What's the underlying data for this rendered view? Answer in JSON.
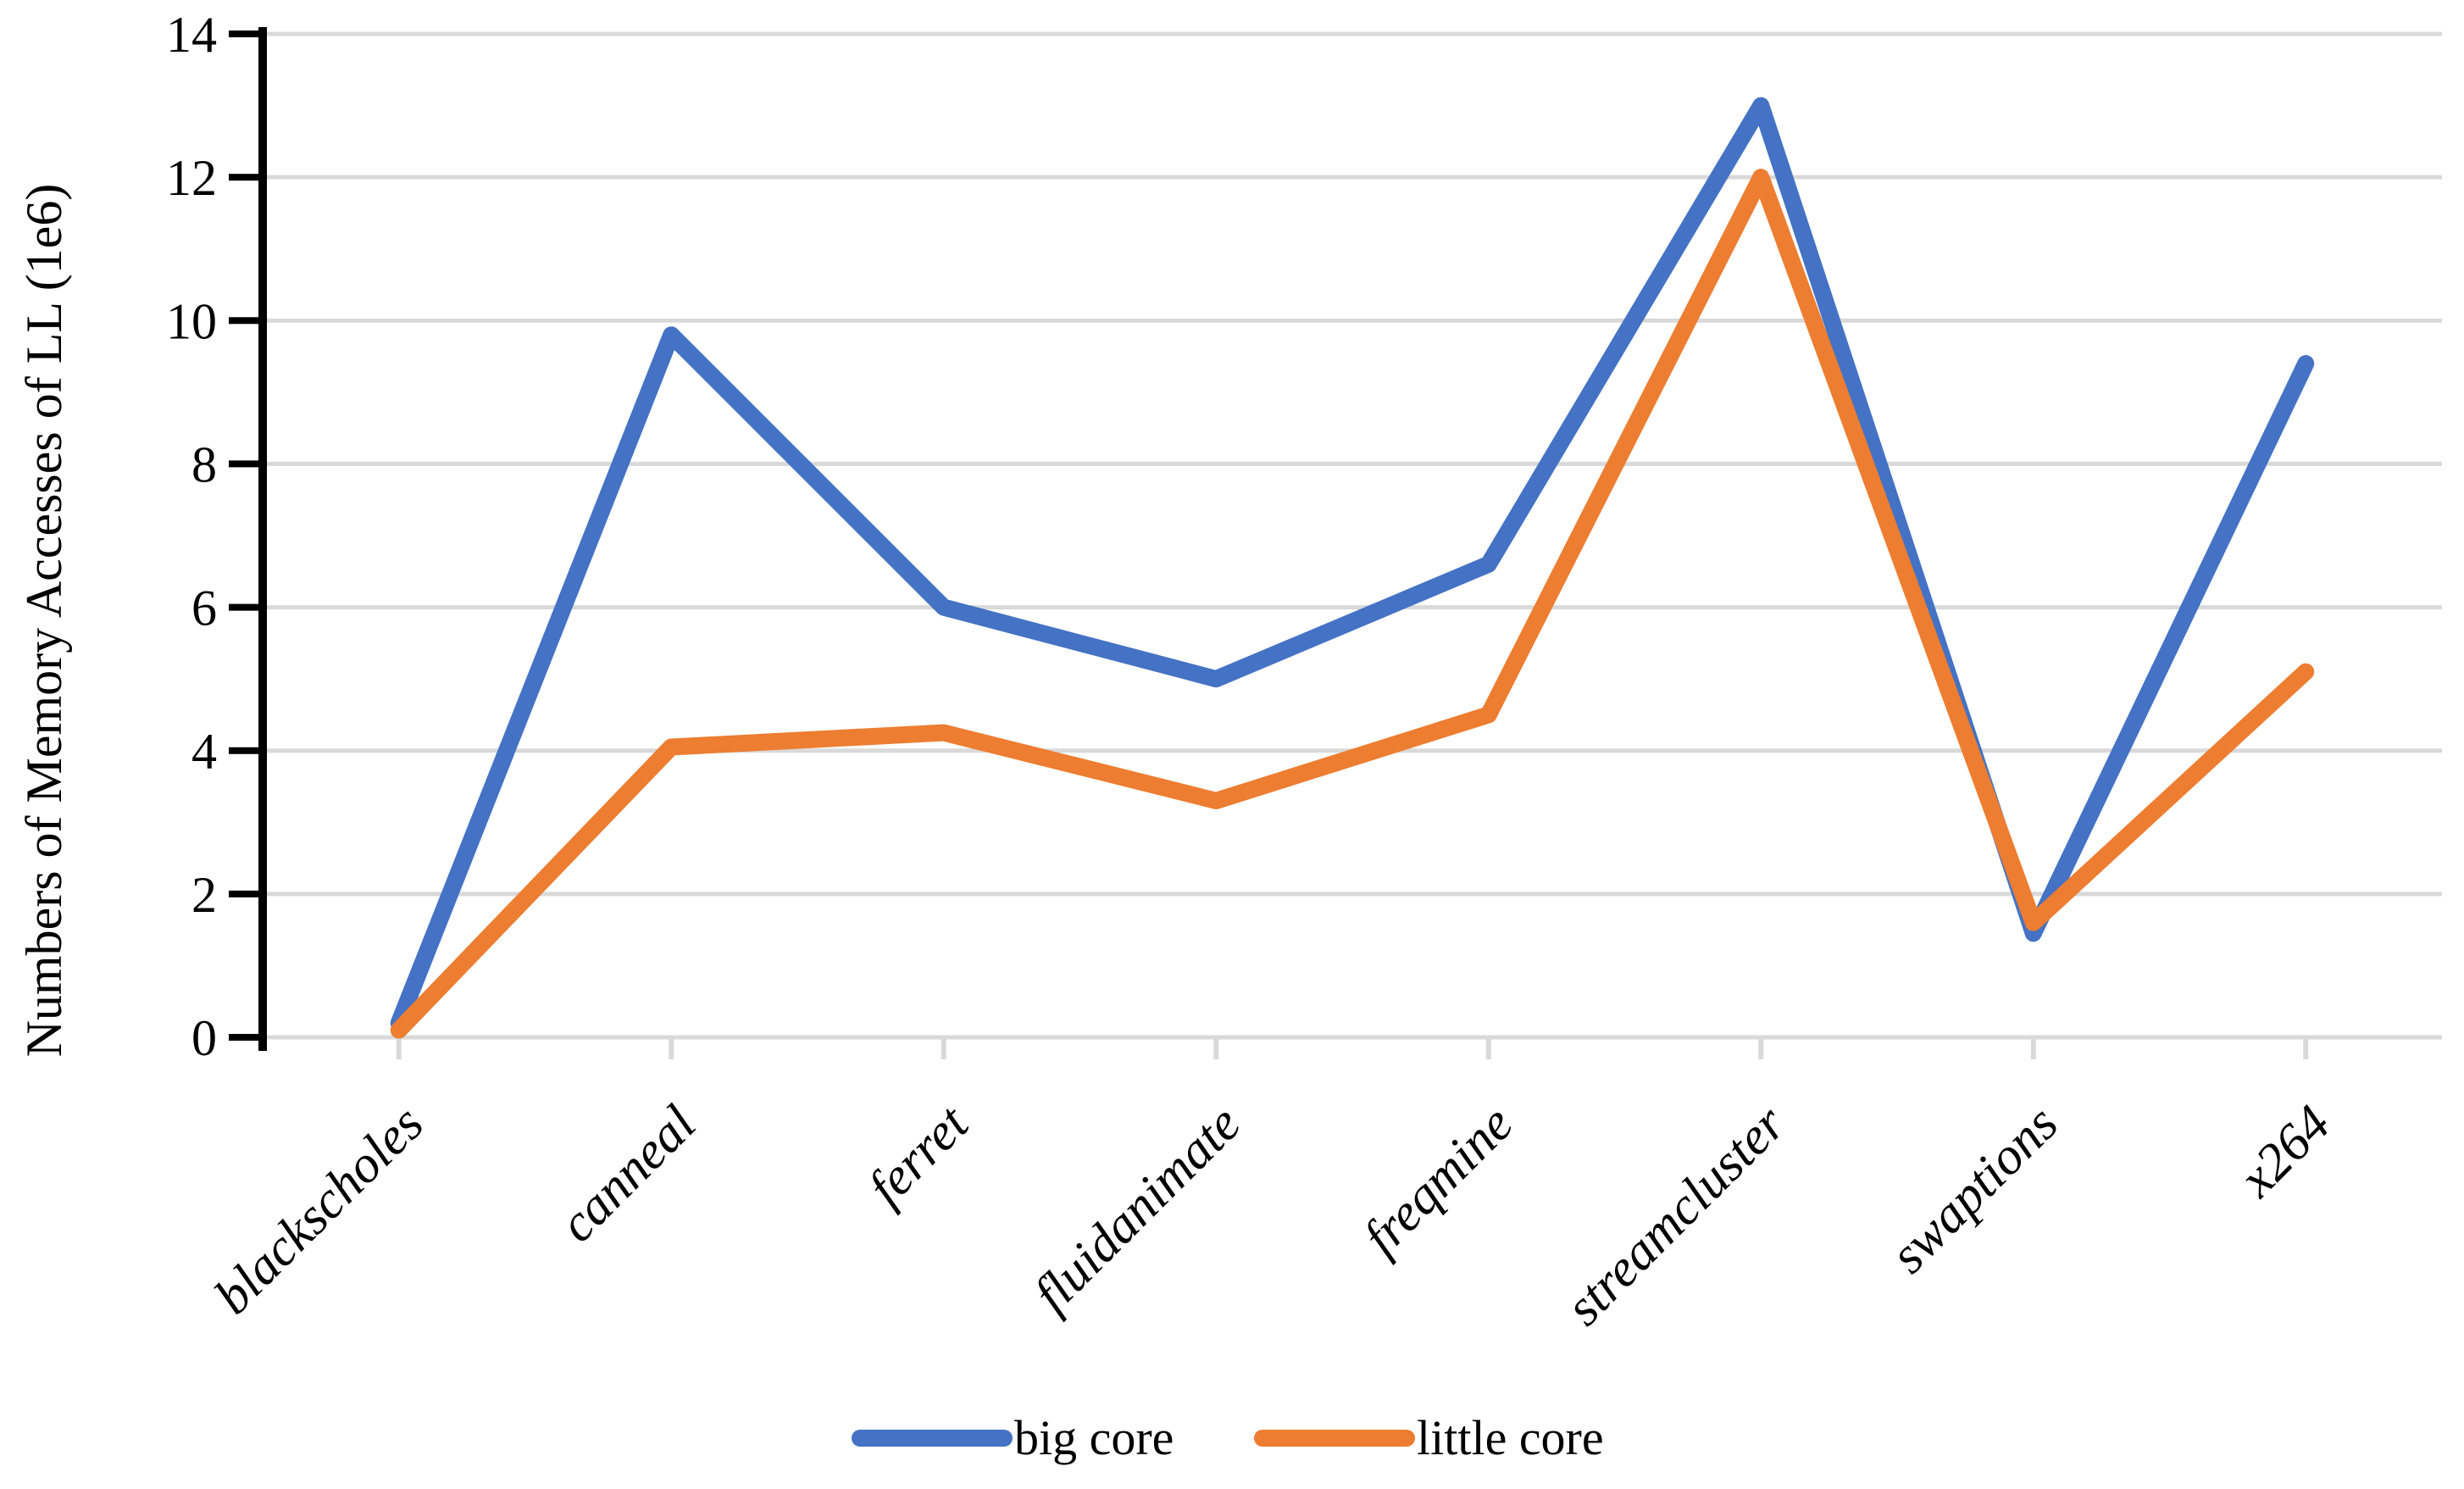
{
  "chart_data": {
    "type": "line",
    "title": "",
    "xlabel": "",
    "ylabel": "Numbers of Memory Accesses of LL  (1e6)",
    "ylim": [
      0,
      14
    ],
    "yticks": [
      0,
      2,
      4,
      6,
      8,
      10,
      12,
      14
    ],
    "grid": "horizontal",
    "legend_position": "bottom-center",
    "categories": [
      "blackscholes",
      "canneal",
      "ferret",
      "fluidanimate",
      "freqmine",
      "streamcluster",
      "swaptions",
      "x264"
    ],
    "series": [
      {
        "name": "big core",
        "color": "#4472C4",
        "values": [
          0.2,
          9.8,
          6.0,
          5.0,
          6.6,
          13.0,
          1.45,
          9.4
        ]
      },
      {
        "name": "little core",
        "color": "#ED7D31",
        "values": [
          0.1,
          4.05,
          4.25,
          3.3,
          4.5,
          12.0,
          1.6,
          5.1
        ]
      }
    ],
    "colors": {
      "gridline": "#D9D9D9",
      "axis_line": "#000000",
      "category_tick": "#D9D9D9",
      "text": "#000000"
    }
  }
}
